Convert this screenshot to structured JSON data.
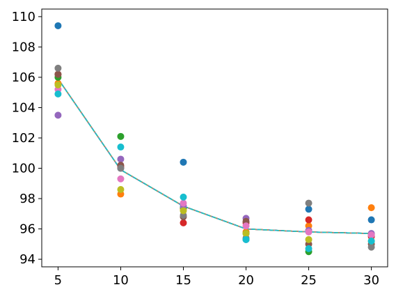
{
  "chart_data": {
    "type": "scatter",
    "title": "",
    "xlabel": "",
    "ylabel": "",
    "xlim": [
      3.7,
      31.3
    ],
    "ylim": [
      93.5,
      110.5
    ],
    "grid": false,
    "x_ticks": [
      5,
      10,
      15,
      20,
      25,
      30
    ],
    "x_tick_labels": [
      "5",
      "10",
      "15",
      "20",
      "25",
      "30"
    ],
    "y_ticks": [
      94,
      96,
      98,
      100,
      102,
      104,
      106,
      108,
      110
    ],
    "y_tick_labels": [
      "94",
      "96",
      "98",
      "100",
      "102",
      "104",
      "106",
      "108",
      "110"
    ],
    "x": [
      5,
      10,
      15,
      20,
      25,
      30
    ],
    "series": [
      {
        "color": "#1f77b4",
        "values": [
          109.4,
          100.0,
          100.4,
          95.3,
          97.3,
          96.6
        ]
      },
      {
        "color": "#ff7f0e",
        "values": [
          105.6,
          98.3,
          97.3,
          95.8,
          96.2,
          97.4
        ]
      },
      {
        "color": "#2ca02c",
        "values": [
          106.0,
          102.1,
          97.4,
          95.7,
          94.5,
          95.6
        ]
      },
      {
        "color": "#d62728",
        "values": [
          106.2,
          100.1,
          96.4,
          96.4,
          96.6,
          95.5
        ]
      },
      {
        "color": "#9467bd",
        "values": [
          103.5,
          100.6,
          97.5,
          96.7,
          95.9,
          95.7
        ]
      },
      {
        "color": "#8c564b",
        "values": [
          106.2,
          100.2,
          96.8,
          96.5,
          95.0,
          95.0
        ]
      },
      {
        "color": "#e377c2",
        "values": [
          105.2,
          99.3,
          97.7,
          96.2,
          95.8,
          95.6
        ]
      },
      {
        "color": "#7f7f7f",
        "values": [
          106.6,
          100.0,
          96.9,
          95.4,
          97.7,
          94.8
        ]
      },
      {
        "color": "#bcbd22",
        "values": [
          105.5,
          98.6,
          97.2,
          95.7,
          95.3,
          95.2
        ]
      },
      {
        "color": "#17becf",
        "values": [
          104.9,
          101.4,
          98.1,
          95.3,
          94.7,
          95.2
        ]
      }
    ],
    "mean_line": {
      "style": "dashed",
      "colors": [
        "#1f77b4",
        "#ff7f0e",
        "#2ca02c",
        "#d62728",
        "#9467bd",
        "#8c564b",
        "#e377c2",
        "#7f7f7f",
        "#bcbd22",
        "#17becf"
      ],
      "values": [
        105.9,
        99.9,
        97.5,
        96.0,
        95.8,
        95.7
      ]
    }
  }
}
